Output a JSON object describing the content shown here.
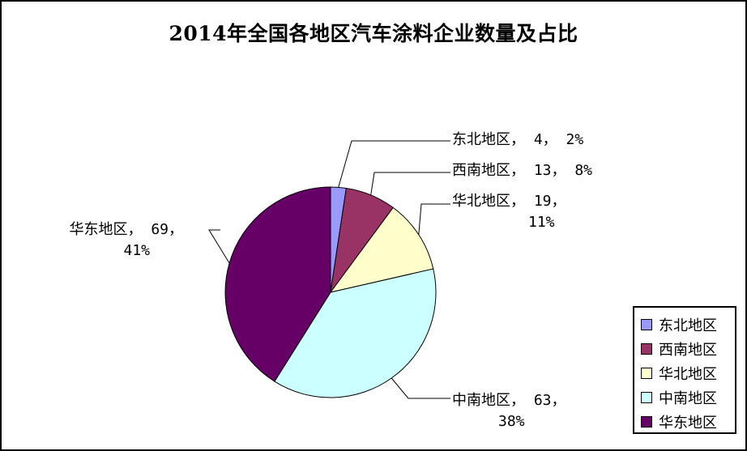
{
  "chart_data": {
    "type": "pie",
    "title": "2014年全国各地区汽车涂料企业数量及占比",
    "slices": [
      {
        "name": "东北地区",
        "value": 4,
        "percent": "2%",
        "color": "#9999ff",
        "label_lines": [
          "东北地区， 4， 2%"
        ]
      },
      {
        "name": "西南地区",
        "value": 13,
        "percent": "8%",
        "color": "#993366",
        "label_lines": [
          "西南地区， 13， 8%"
        ]
      },
      {
        "name": "华北地区",
        "value": 19,
        "percent": "11%",
        "color": "#ffffcc",
        "label_lines": [
          "华北地区， 19，",
          "11%"
        ]
      },
      {
        "name": "中南地区",
        "value": 63,
        "percent": "38%",
        "color": "#ccffff",
        "label_lines": [
          "中南地区， 63，",
          "38%"
        ]
      },
      {
        "name": "华东地区",
        "value": 69,
        "percent": "41%",
        "color": "#660066",
        "label_lines": [
          "华东地区， 69，",
          "41%"
        ]
      }
    ],
    "legend_position": "bottom-right"
  }
}
